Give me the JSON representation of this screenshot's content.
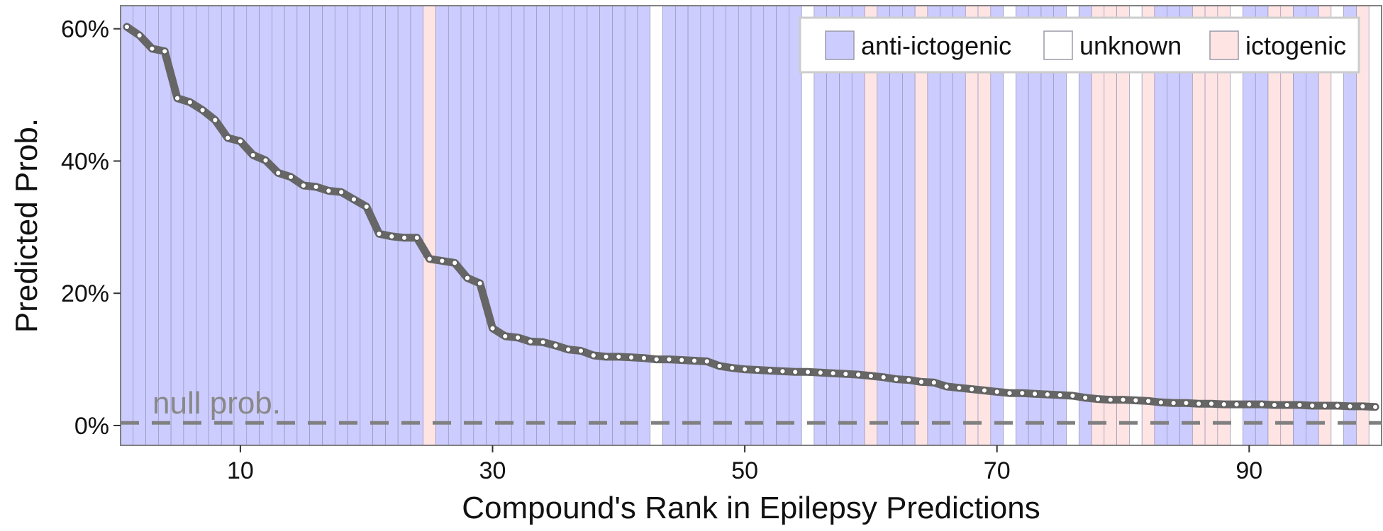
{
  "chart_data": {
    "type": "bar",
    "xlabel": "Compound's Rank in Epilepsy Predictions",
    "ylabel": "Predicted Prob.",
    "xlim": [
      0.5,
      100.5
    ],
    "ylim": [
      -0.03,
      0.635
    ],
    "x_ticks": [
      10,
      30,
      50,
      70,
      90
    ],
    "y_ticks": [
      0,
      0.2,
      0.4,
      0.6
    ],
    "y_tick_labels": [
      "0%",
      "20%",
      "40%",
      "60%"
    ],
    "grid": false,
    "legend_position": "top-right",
    "legend": [
      {
        "key": "anti",
        "label": "anti-ictogenic"
      },
      {
        "key": "unknown",
        "label": "unknown"
      },
      {
        "key": "icto",
        "label": "ictogenic"
      }
    ],
    "colors": {
      "anti": "#ccccff",
      "unknown": "#ffffff",
      "icto": "#ffe4e4",
      "line": "#666666",
      "point": "#ffffff",
      "null_line": "#808080"
    },
    "null_prob": 0.004,
    "null_label": "null prob.",
    "ranks": [
      1,
      2,
      3,
      4,
      5,
      6,
      7,
      8,
      9,
      10,
      11,
      12,
      13,
      14,
      15,
      16,
      17,
      18,
      19,
      20,
      21,
      22,
      23,
      24,
      25,
      26,
      27,
      28,
      29,
      30,
      31,
      32,
      33,
      34,
      35,
      36,
      37,
      38,
      39,
      40,
      41,
      42,
      43,
      44,
      45,
      46,
      47,
      48,
      49,
      50,
      51,
      52,
      53,
      54,
      55,
      56,
      57,
      58,
      59,
      60,
      61,
      62,
      63,
      64,
      65,
      66,
      67,
      68,
      69,
      70,
      71,
      72,
      73,
      74,
      75,
      76,
      77,
      78,
      79,
      80,
      81,
      82,
      83,
      84,
      85,
      86,
      87,
      88,
      89,
      90,
      91,
      92,
      93,
      94,
      95,
      96,
      97,
      98,
      99,
      100
    ],
    "categories": [
      "anti",
      "anti",
      "anti",
      "anti",
      "anti",
      "anti",
      "anti",
      "anti",
      "anti",
      "anti",
      "anti",
      "anti",
      "anti",
      "anti",
      "anti",
      "anti",
      "anti",
      "anti",
      "anti",
      "anti",
      "anti",
      "anti",
      "anti",
      "anti",
      "icto",
      "anti",
      "anti",
      "anti",
      "anti",
      "anti",
      "anti",
      "anti",
      "anti",
      "anti",
      "anti",
      "anti",
      "anti",
      "anti",
      "anti",
      "anti",
      "anti",
      "anti",
      "unknown",
      "anti",
      "anti",
      "anti",
      "anti",
      "anti",
      "anti",
      "anti",
      "anti",
      "anti",
      "anti",
      "anti",
      "unknown",
      "anti",
      "anti",
      "anti",
      "anti",
      "icto",
      "anti",
      "anti",
      "anti",
      "icto",
      "anti",
      "anti",
      "anti",
      "icto",
      "icto",
      "anti",
      "unknown",
      "anti",
      "anti",
      "anti",
      "anti",
      "unknown",
      "anti",
      "icto",
      "icto",
      "icto",
      "unknown",
      "icto",
      "anti",
      "anti",
      "anti",
      "icto",
      "icto",
      "icto",
      "unknown",
      "anti",
      "anti",
      "icto",
      "icto",
      "anti",
      "anti",
      "icto",
      "unknown",
      "anti",
      "icto",
      "unknown"
    ],
    "values": [
      0.603,
      0.59,
      0.57,
      0.566,
      0.495,
      0.489,
      0.477,
      0.462,
      0.435,
      0.43,
      0.409,
      0.401,
      0.382,
      0.376,
      0.363,
      0.361,
      0.355,
      0.353,
      0.342,
      0.331,
      0.29,
      0.286,
      0.284,
      0.284,
      0.252,
      0.249,
      0.246,
      0.223,
      0.215,
      0.147,
      0.135,
      0.133,
      0.127,
      0.126,
      0.121,
      0.115,
      0.113,
      0.106,
      0.104,
      0.104,
      0.103,
      0.102,
      0.1,
      0.1,
      0.099,
      0.098,
      0.097,
      0.09,
      0.087,
      0.085,
      0.084,
      0.083,
      0.082,
      0.081,
      0.081,
      0.08,
      0.079,
      0.078,
      0.077,
      0.075,
      0.073,
      0.07,
      0.069,
      0.066,
      0.065,
      0.059,
      0.057,
      0.055,
      0.053,
      0.051,
      0.049,
      0.049,
      0.048,
      0.047,
      0.046,
      0.045,
      0.042,
      0.04,
      0.039,
      0.039,
      0.038,
      0.037,
      0.035,
      0.034,
      0.034,
      0.033,
      0.033,
      0.032,
      0.032,
      0.032,
      0.032,
      0.031,
      0.031,
      0.031,
      0.03,
      0.03,
      0.03,
      0.029,
      0.029,
      0.028
    ]
  }
}
